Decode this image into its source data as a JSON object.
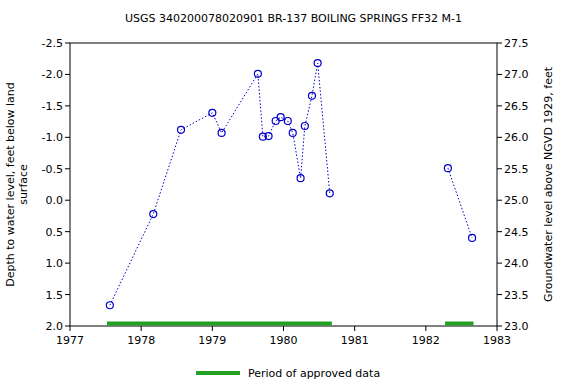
{
  "chart_data": {
    "type": "line",
    "title": "USGS 340200078020901 BR-137 BOILING SPRINGS FF32 M-1",
    "y_label": [
      "Depth to water level, feet below land",
      "surface"
    ],
    "y2_label": "Groundwater level above NGVD 1929, feet",
    "x": [
      1977.56,
      1978.17,
      1978.56,
      1979.0,
      1979.13,
      1979.64,
      1979.71,
      1979.79,
      1979.89,
      1979.96,
      1980.06,
      1980.13,
      1980.24,
      1980.3,
      1980.4,
      1980.48,
      1980.65,
      1981.5,
      1982.31,
      1982.65
    ],
    "series": [
      {
        "color": "#0000cc",
        "marker": "circle",
        "line_style": "dotted",
        "axis": "y",
        "values": [
          1.67,
          0.22,
          -1.12,
          -1.39,
          -1.07,
          -2.01,
          -1.01,
          -1.02,
          -1.26,
          -1.32,
          -1.26,
          -1.07,
          -0.35,
          -1.18,
          -1.66,
          -2.18,
          -0.11,
          null,
          -0.51,
          0.6
        ]
      }
    ],
    "xlim": [
      1977,
      1983
    ],
    "xticks": [
      1977,
      1978,
      1979,
      1980,
      1981,
      1982,
      1983
    ],
    "ylim": [
      2.0,
      -2.5
    ],
    "yticks": [
      -2.5,
      {
        "value": -2.0,
        "label": "-2.0"
      },
      -1.5,
      {
        "value": -1.0,
        "label": "-1.0"
      },
      -0.5,
      {
        "value": 0.0,
        "label": "0.0"
      },
      0.5,
      {
        "value": 1.0,
        "label": "1.0"
      },
      1.5,
      {
        "value": 2.0,
        "label": "2.0"
      }
    ],
    "y2lim": [
      23.0,
      27.5
    ],
    "y2ticks": [
      {
        "value": 23.0,
        "label": "23.0"
      },
      23.5,
      {
        "value": 24.0,
        "label": "24.0"
      },
      24.5,
      {
        "value": 25.0,
        "label": "25.0"
      },
      25.5,
      {
        "value": 26.0,
        "label": "26.0"
      },
      26.5,
      {
        "value": 27.0,
        "label": "27.0"
      },
      27.5
    ],
    "approved": {
      "name": "Period of approved data",
      "color": "#22a022",
      "periods": [
        [
          1977.52,
          1980.68
        ],
        [
          1982.27,
          1982.67
        ]
      ]
    },
    "grid": false,
    "legend": "bottom"
  }
}
